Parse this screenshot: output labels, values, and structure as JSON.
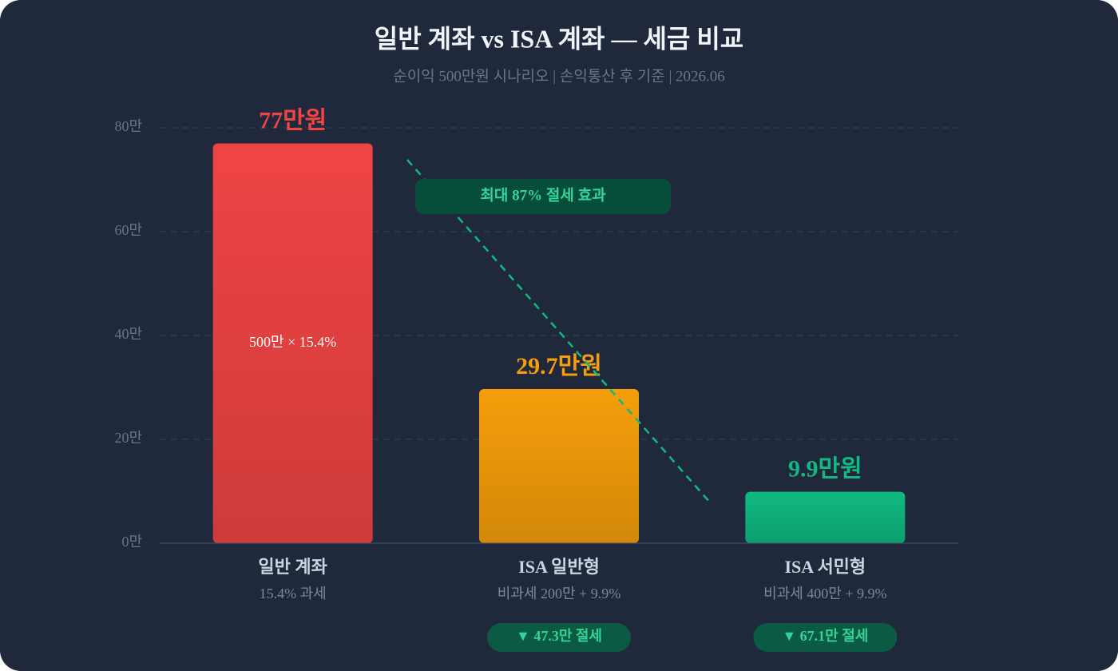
{
  "chart_data": {
    "type": "bar",
    "title": "일반 계좌 vs ISA 계좌 — 세금 비교",
    "subtitle": "순이익 500만원 시나리오 | 손익통산 후 기준 | 2026.06",
    "categories": [
      "일반 계좌",
      "ISA 일반형",
      "ISA 서민형"
    ],
    "category_notes": [
      "15.4% 과세",
      "비과세 200만 + 9.9%",
      "비과세 400만 + 9.9%"
    ],
    "values": [
      77,
      29.7,
      9.9
    ],
    "value_labels": [
      "77만원",
      "29.7만원",
      "9.9만원"
    ],
    "colors": [
      "#ef4444",
      "#f59e0b",
      "#10b981"
    ],
    "bar_notes": [
      "500만 × 15.4%",
      null,
      null
    ],
    "savings_labels": [
      null,
      "▼ 47.3만 절세",
      "▼ 67.1만 절세"
    ],
    "annotation": "최대 87% 절세 효과",
    "ylim": [
      0,
      80
    ],
    "yticks": [
      {
        "value": 0,
        "label": "0만"
      },
      {
        "value": 20,
        "label": "20만"
      },
      {
        "value": 40,
        "label": "40만"
      },
      {
        "value": 60,
        "label": "60만"
      },
      {
        "value": 80,
        "label": "80만"
      }
    ],
    "grid": true
  }
}
